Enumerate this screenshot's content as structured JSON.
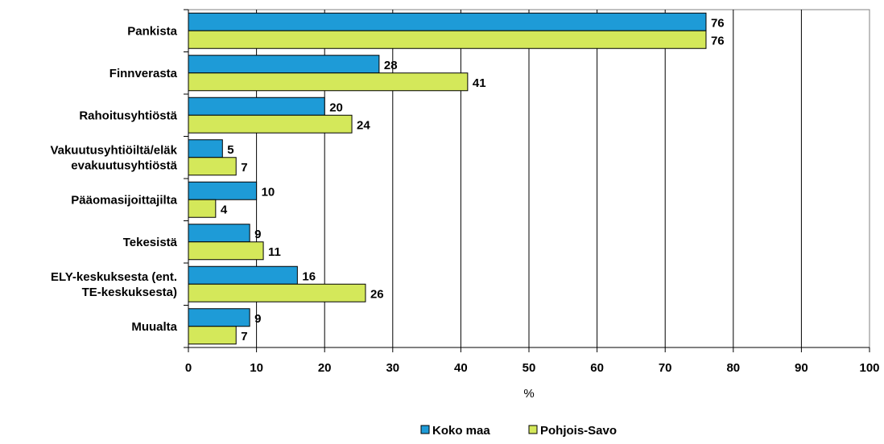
{
  "chart_data": {
    "type": "bar",
    "orientation": "horizontal",
    "title": "",
    "xlabel": "%",
    "ylabel": "",
    "xlim": [
      0,
      100
    ],
    "xticks": [
      0,
      10,
      20,
      30,
      40,
      50,
      60,
      70,
      80,
      90,
      100
    ],
    "grid": true,
    "legend_position": "bottom",
    "categories": [
      [
        "Pankista"
      ],
      [
        "Finnverasta"
      ],
      [
        "Rahoitusyhtiöstä"
      ],
      [
        "Vakuutusyhtiöiltä/eläk",
        "evakuutusyhtiöstä"
      ],
      [
        "Pääomasijoittajilta"
      ],
      [
        "Tekesistä"
      ],
      [
        "ELY-keskuksesta (ent.",
        "TE-keskuksesta)"
      ],
      [
        "Muualta"
      ]
    ],
    "series": [
      {
        "name": "Koko maa",
        "color": "#1E9BD7",
        "values": [
          76,
          28,
          20,
          5,
          10,
          9,
          16,
          9
        ]
      },
      {
        "name": "Pohjois-Savo",
        "color": "#D4E85A",
        "values": [
          76,
          41,
          24,
          7,
          4,
          11,
          26,
          7
        ]
      }
    ]
  }
}
